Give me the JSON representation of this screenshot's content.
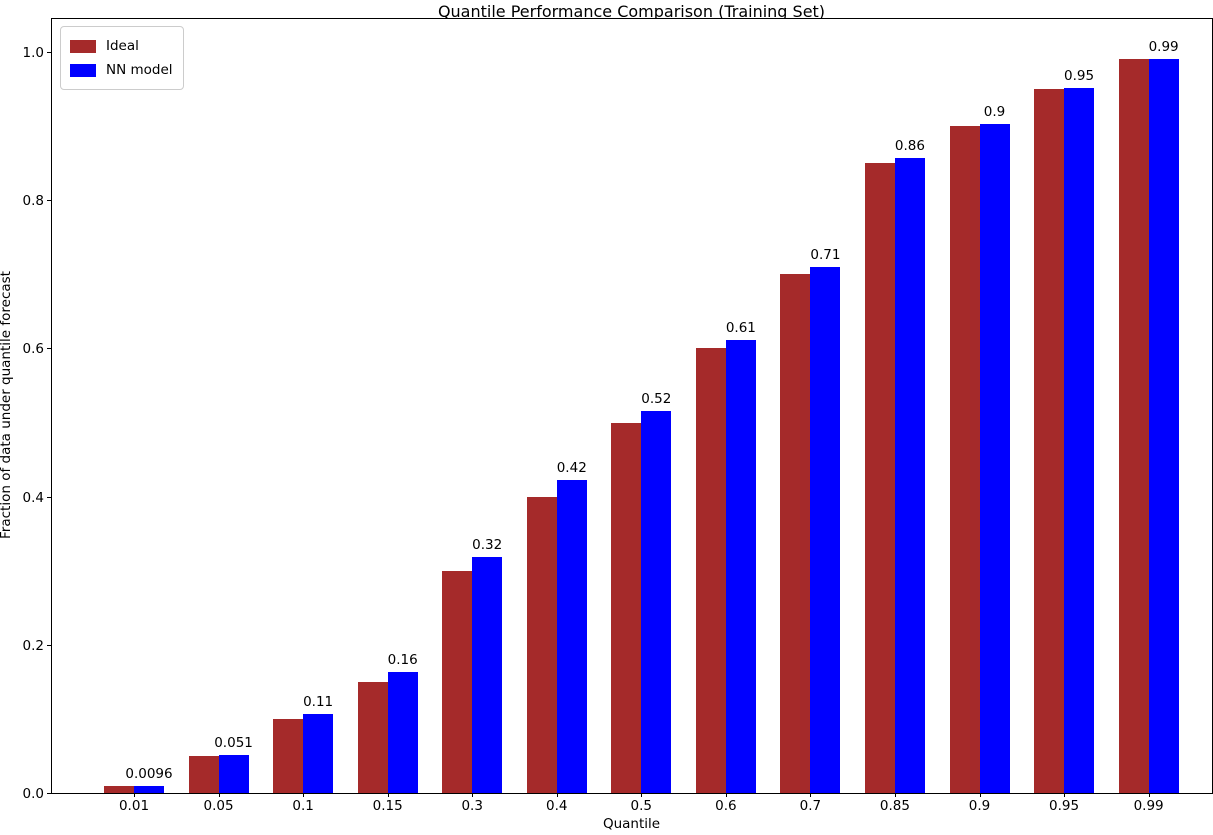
{
  "figure": {
    "title": "Quantile Performance Comparison (Training Set)",
    "xlabel": "Quantile",
    "ylabel": "Fraction of data under quantile forecast"
  },
  "legend": {
    "items": [
      {
        "label": "Ideal",
        "color": "#A52A2A"
      },
      {
        "label": "NN model",
        "color": "#0000FF"
      }
    ]
  },
  "chart_data": {
    "type": "bar",
    "title": "Quantile Performance Comparison (Training Set)",
    "xlabel": "Quantile",
    "ylabel": "Fraction of data under quantile forecast",
    "categories": [
      "0.01",
      "0.05",
      "0.1",
      "0.15",
      "0.3",
      "0.4",
      "0.5",
      "0.6",
      "0.7",
      "0.85",
      "0.9",
      "0.95",
      "0.99"
    ],
    "series": [
      {
        "name": "Ideal",
        "color": "#A52A2A",
        "values": [
          0.01,
          0.05,
          0.1,
          0.15,
          0.3,
          0.4,
          0.5,
          0.6,
          0.7,
          0.85,
          0.9,
          0.95,
          0.99
        ]
      },
      {
        "name": "NN model",
        "color": "#0000FF",
        "values": [
          0.0096,
          0.051,
          0.107,
          0.163,
          0.318,
          0.422,
          0.516,
          0.611,
          0.71,
          0.857,
          0.903,
          0.951,
          0.99
        ],
        "bar_labels": [
          "0.0096",
          "0.051",
          "0.11",
          "0.16",
          "0.32",
          "0.42",
          "0.52",
          "0.61",
          "0.71",
          "0.86",
          "0.9",
          "0.95",
          "0.99"
        ]
      }
    ],
    "yticks": [
      0.0,
      0.2,
      0.4,
      0.6,
      0.8,
      1.0
    ],
    "ytick_labels": [
      "0.0",
      "0.2",
      "0.4",
      "0.6",
      "0.8",
      "1.0"
    ],
    "ylim": [
      0,
      1.046
    ],
    "grid": false,
    "legend_position": "upper left"
  }
}
